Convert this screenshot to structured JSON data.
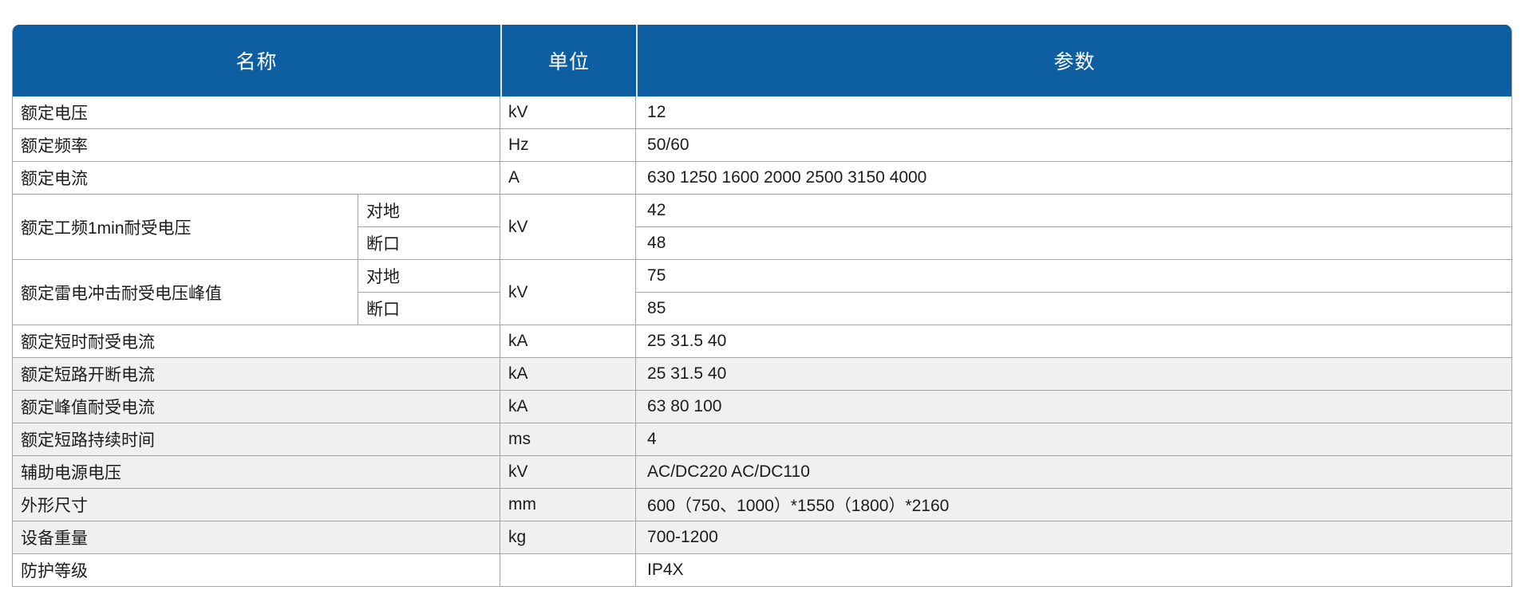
{
  "table": {
    "header": {
      "name": "名称",
      "unit": "单位",
      "param": "参数"
    },
    "colors": {
      "header_bg": "#0e5fa2",
      "header_text": "#ffffff",
      "shaded_row_bg": "#f0f0f0",
      "border": "#a5a5a5",
      "body_text": "#1c1c1c"
    },
    "rows": [
      {
        "name": "额定电压",
        "unit": "kV",
        "param": "12"
      },
      {
        "name": "额定频率",
        "unit": "Hz",
        "param": "50/60"
      },
      {
        "name": "额定电流",
        "unit": "A",
        "param": "630 1250 1600 2000 2500 3150 4000"
      },
      {
        "name": "额定工频1min耐受电压",
        "unit": "kV",
        "sub": [
          {
            "label": "对地",
            "param": "42"
          },
          {
            "label": "断口",
            "param": "48"
          }
        ]
      },
      {
        "name": "额定雷电冲击耐受电压峰值",
        "unit": "kV",
        "sub": [
          {
            "label": "对地",
            "param": "75"
          },
          {
            "label": "断口",
            "param": "85"
          }
        ]
      },
      {
        "name": "额定短时耐受电流",
        "unit": "kA",
        "param": "25 31.5 40"
      },
      {
        "name": "额定短路开断电流",
        "unit": "kA",
        "param": "25 31.5 40"
      },
      {
        "name": "额定峰值耐受电流",
        "unit": "kA",
        "param": "63 80 100"
      },
      {
        "name": "额定短路持续时间",
        "unit": "ms",
        "param": "4"
      },
      {
        "name": "辅助电源电压",
        "unit": "kV",
        "param": "AC/DC220 AC/DC110"
      },
      {
        "name": "外形尺寸",
        "unit": "mm",
        "param": "600（750、1000）*1550（1800）*2160"
      },
      {
        "name": "设备重量",
        "unit": "kg",
        "param": "700-1200"
      },
      {
        "name": "防护等级",
        "unit": "",
        "param": "IP4X"
      }
    ]
  }
}
